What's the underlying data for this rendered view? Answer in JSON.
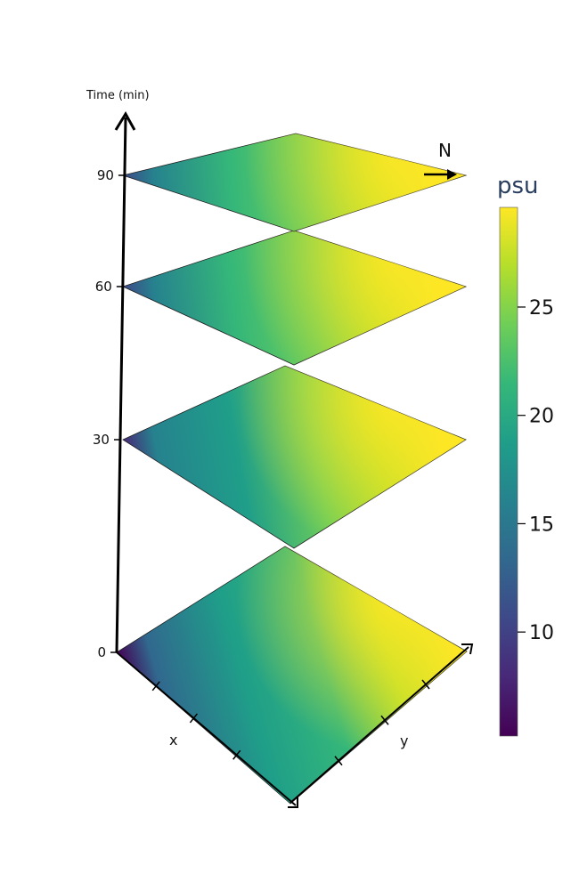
{
  "chart_data": {
    "type": "heatmap",
    "subtype": "stacked-3d-surface-slices",
    "z_axis": {
      "title": "Time (min)",
      "ticks": [
        0,
        30,
        60,
        90
      ]
    },
    "x_axis": {
      "label": "x"
    },
    "y_axis": {
      "label": "y"
    },
    "north_label": "N",
    "colorbar": {
      "title": "psu",
      "colorscale": "viridis",
      "range": [
        5.2,
        29.6
      ],
      "ticks": [
        10,
        15,
        20,
        25
      ],
      "colors": [
        "#440154",
        "#482878",
        "#3e4989",
        "#31688e",
        "#26828e",
        "#1f9e89",
        "#35b779",
        "#6ece58",
        "#b5de2b",
        "#fde725"
      ]
    },
    "slices": [
      {
        "time": 0,
        "min_psu": 5.5,
        "max_psu": 29.5
      },
      {
        "time": 30,
        "min_psu": 8.0,
        "max_psu": 29.3
      },
      {
        "time": 60,
        "min_psu": 9.5,
        "max_psu": 29.0
      },
      {
        "time": 90,
        "min_psu": 11.0,
        "max_psu": 28.5
      }
    ]
  }
}
